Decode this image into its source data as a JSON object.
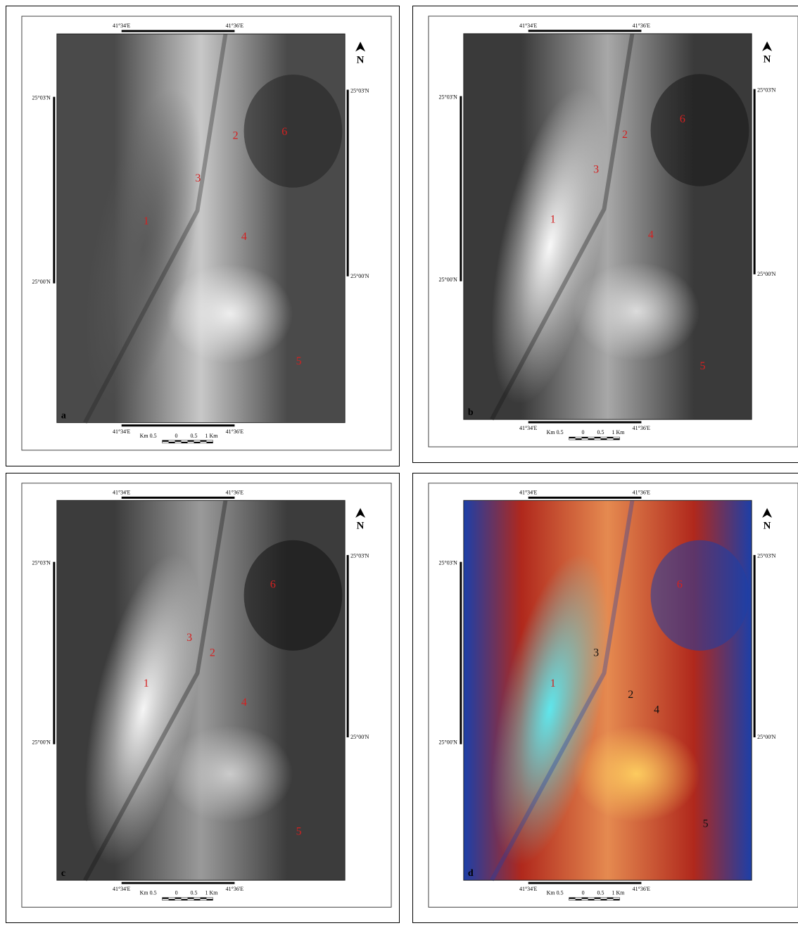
{
  "panels": [
    {
      "letter": "a",
      "top_lon": [
        "41°34'E",
        "41°36'E"
      ],
      "bottom_lon": [
        "41°34'E",
        "41°36'E"
      ],
      "left_lat": [
        "25°03'N",
        "25°00'N"
      ],
      "right_lat": [
        "25°03'N",
        "25°00'N"
      ],
      "north": "N",
      "scale": [
        "Km 0.5",
        "0",
        "0.5",
        "1 Km"
      ],
      "sites": [
        {
          "label": "1",
          "color": "#d42020"
        },
        {
          "label": "2",
          "color": "#d42020"
        },
        {
          "label": "3",
          "color": "#d42020"
        },
        {
          "label": "4",
          "color": "#d42020"
        },
        {
          "label": "5",
          "color": "#d42020"
        },
        {
          "label": "6",
          "color": "#d42020"
        }
      ]
    },
    {
      "letter": "b",
      "top_lon": [
        "41°34'E",
        "41°36'E"
      ],
      "bottom_lon": [
        "41°34'E",
        "41°36'E"
      ],
      "left_lat": [
        "25°03'N",
        "25°00'N"
      ],
      "right_lat": [
        "25°03'N",
        "25°00'N"
      ],
      "north": "N",
      "scale": [
        "Km 0.5",
        "0",
        "0.5",
        "1 Km"
      ],
      "sites": [
        {
          "label": "1",
          "color": "#d42020"
        },
        {
          "label": "2",
          "color": "#d42020"
        },
        {
          "label": "3",
          "color": "#d42020"
        },
        {
          "label": "4",
          "color": "#d42020"
        },
        {
          "label": "5",
          "color": "#d42020"
        },
        {
          "label": "6",
          "color": "#d42020"
        }
      ]
    },
    {
      "letter": "c",
      "top_lon": [
        "41°34'E",
        "41°36'E"
      ],
      "bottom_lon": [
        "41°34'E",
        "41°36'E"
      ],
      "left_lat": [
        "25°03'N",
        "25°00'N"
      ],
      "right_lat": [
        "25°03'N",
        "25°00'N"
      ],
      "north": "N",
      "scale": [
        "Km 0.5",
        "0",
        "0.5",
        "1 Km"
      ],
      "sites": [
        {
          "label": "1",
          "color": "#d42020"
        },
        {
          "label": "2",
          "color": "#d42020"
        },
        {
          "label": "3",
          "color": "#d42020"
        },
        {
          "label": "4",
          "color": "#d42020"
        },
        {
          "label": "5",
          "color": "#d42020"
        },
        {
          "label": "6",
          "color": "#d42020"
        }
      ]
    },
    {
      "letter": "d",
      "top_lon": [
        "41°34'E",
        "41°36'E"
      ],
      "bottom_lon": [
        "41°34'E",
        "41°36'E"
      ],
      "left_lat": [
        "25°03'N",
        "25°00'N"
      ],
      "right_lat": [
        "25°03'N",
        "25°00'N"
      ],
      "north": "N",
      "scale": [
        "Km 0.5",
        "0",
        "0.5",
        "1 Km"
      ],
      "sites": [
        {
          "label": "1",
          "color": "#d42020"
        },
        {
          "label": "2",
          "color": "#111111"
        },
        {
          "label": "3",
          "color": "#111111"
        },
        {
          "label": "4",
          "color": "#111111"
        },
        {
          "label": "5",
          "color": "#111111"
        },
        {
          "label": "6",
          "color": "#d42020"
        }
      ]
    }
  ]
}
